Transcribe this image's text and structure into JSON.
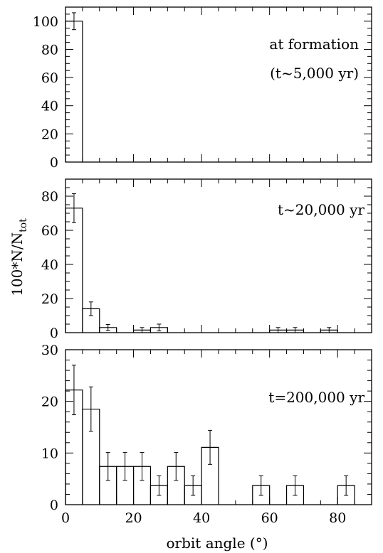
{
  "chart_data": {
    "type": "bar",
    "xlabel": "orbit angle (°)",
    "ylabel_main": "100*N/N",
    "ylabel_sub": "tot",
    "xlim": [
      0,
      90
    ],
    "x_ticks": [
      "0",
      "20",
      "40",
      "60",
      "80"
    ],
    "bin_width": 5,
    "panels": [
      {
        "annotation": [
          "at formation",
          "(t~5,000 yr)"
        ],
        "ylim": [
          0,
          110
        ],
        "y_ticks": [
          "0",
          "20",
          "40",
          "60",
          "80",
          "100"
        ],
        "bins": [
          {
            "x": 2.5,
            "value": 100,
            "err": 6
          }
        ]
      },
      {
        "annotation": [
          "t~20,000 yr"
        ],
        "ylim": [
          0,
          90
        ],
        "y_ticks": [
          "0",
          "20",
          "40",
          "60",
          "80"
        ],
        "bins": [
          {
            "x": 2.5,
            "value": 73,
            "err": 8.5
          },
          {
            "x": 7.5,
            "value": 14,
            "err": 4
          },
          {
            "x": 12.5,
            "value": 3,
            "err": 1.8
          },
          {
            "x": 22.5,
            "value": 1.5,
            "err": 1.5
          },
          {
            "x": 27.5,
            "value": 3,
            "err": 2
          },
          {
            "x": 62.5,
            "value": 1.5,
            "err": 1.5
          },
          {
            "x": 67.5,
            "value": 1.5,
            "err": 1.5
          },
          {
            "x": 77.5,
            "value": 1.5,
            "err": 1.5
          }
        ]
      },
      {
        "annotation": [
          "t=200,000 yr"
        ],
        "ylim": [
          0,
          30
        ],
        "y_ticks": [
          "0",
          "10",
          "20",
          "30"
        ],
        "bins": [
          {
            "x": 2.5,
            "value": 22.2,
            "err": 4.8
          },
          {
            "x": 7.5,
            "value": 18.5,
            "err": 4.3
          },
          {
            "x": 12.5,
            "value": 7.4,
            "err": 2.7
          },
          {
            "x": 17.5,
            "value": 7.4,
            "err": 2.7
          },
          {
            "x": 22.5,
            "value": 7.4,
            "err": 2.7
          },
          {
            "x": 27.5,
            "value": 3.7,
            "err": 1.9
          },
          {
            "x": 32.5,
            "value": 7.4,
            "err": 2.7
          },
          {
            "x": 37.5,
            "value": 3.7,
            "err": 1.9
          },
          {
            "x": 42.5,
            "value": 11.1,
            "err": 3.3
          },
          {
            "x": 57.5,
            "value": 3.7,
            "err": 1.9
          },
          {
            "x": 67.5,
            "value": 3.7,
            "err": 1.9
          },
          {
            "x": 82.5,
            "value": 3.7,
            "err": 1.9
          }
        ]
      }
    ]
  }
}
